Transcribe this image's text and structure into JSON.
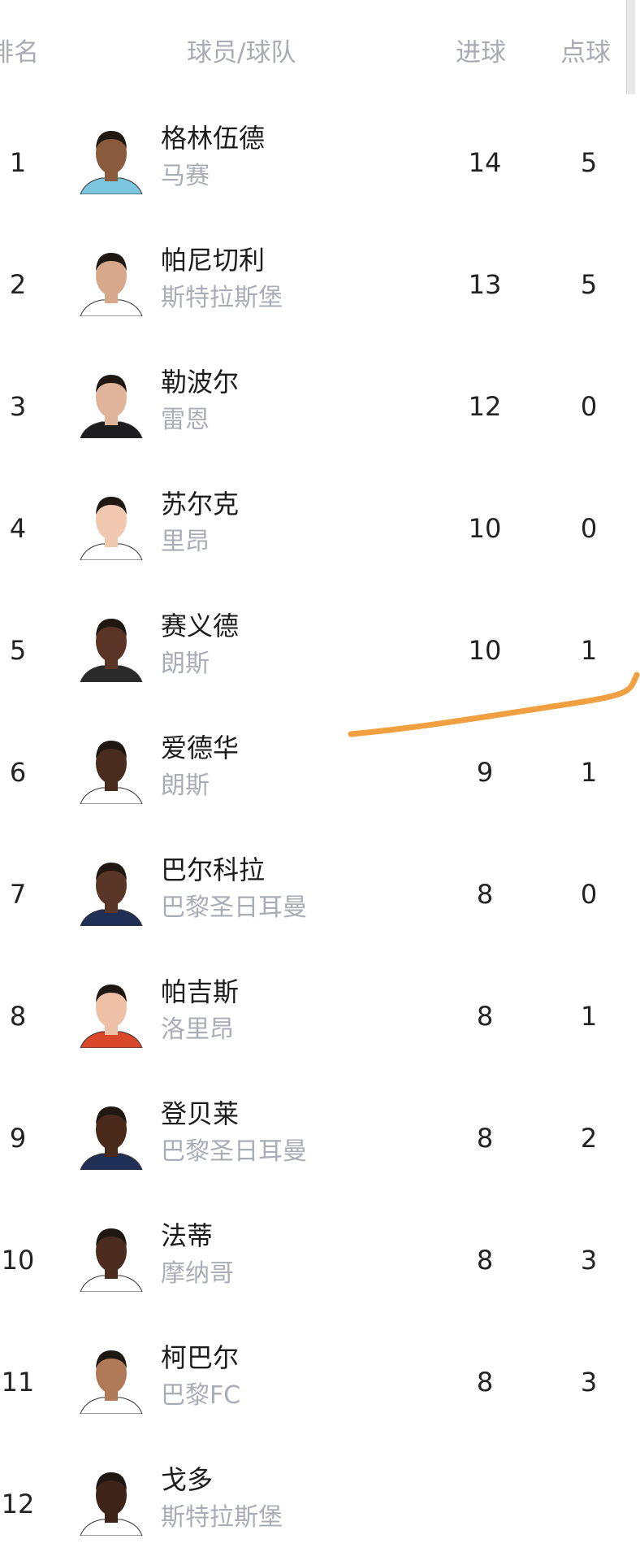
{
  "header": {
    "rank": "排名",
    "player_team": "球员/球队",
    "goals": "进球",
    "penalties": "点球"
  },
  "rows": [
    {
      "rank": "1",
      "name": "格林伍德",
      "team": "马赛",
      "goals": "14",
      "penalties": "5",
      "shirt": "#7cc6e0",
      "skin": "#8a5a3c"
    },
    {
      "rank": "2",
      "name": "帕尼切利",
      "team": "斯特拉斯堡",
      "goals": "13",
      "penalties": "5",
      "shirt": "#ffffff",
      "skin": "#d8a88a"
    },
    {
      "rank": "3",
      "name": "勒波尔",
      "team": "雷恩",
      "goals": "12",
      "penalties": "0",
      "shirt": "#1d1d1f",
      "skin": "#e0b49a"
    },
    {
      "rank": "4",
      "name": "苏尔克",
      "team": "里昂",
      "goals": "10",
      "penalties": "0",
      "shirt": "#ffffff",
      "skin": "#f0c8b0"
    },
    {
      "rank": "5",
      "name": "赛义德",
      "team": "朗斯",
      "goals": "10",
      "penalties": "1",
      "shirt": "#2a2a2a",
      "skin": "#5a3424"
    },
    {
      "rank": "6",
      "name": "爱德华",
      "team": "朗斯",
      "goals": "9",
      "penalties": "1",
      "shirt": "#ffffff",
      "skin": "#4a2c1e"
    },
    {
      "rank": "7",
      "name": "巴尔科拉",
      "team": "巴黎圣日耳曼",
      "goals": "8",
      "penalties": "0",
      "shirt": "#1f2f55",
      "skin": "#5a3626"
    },
    {
      "rank": "8",
      "name": "帕吉斯",
      "team": "洛里昂",
      "goals": "8",
      "penalties": "1",
      "shirt": "#d9482a",
      "skin": "#eec0a6"
    },
    {
      "rank": "9",
      "name": "登贝莱",
      "team": "巴黎圣日耳曼",
      "goals": "8",
      "penalties": "2",
      "shirt": "#1f2f55",
      "skin": "#4a2a1a"
    },
    {
      "rank": "10",
      "name": "法蒂",
      "team": "摩纳哥",
      "goals": "8",
      "penalties": "3",
      "shirt": "#ffffff",
      "skin": "#4c2c1e"
    },
    {
      "rank": "11",
      "name": "柯巴尔",
      "team": "巴黎FC",
      "goals": "8",
      "penalties": "3",
      "shirt": "#ffffff",
      "skin": "#b07a58"
    },
    {
      "rank": "12",
      "name": "戈多",
      "team": "斯特拉斯堡",
      "goals": "",
      "penalties": "",
      "shirt": "#ffffff",
      "skin": "#3e2418"
    }
  ],
  "annotation_color": "#f0a040"
}
